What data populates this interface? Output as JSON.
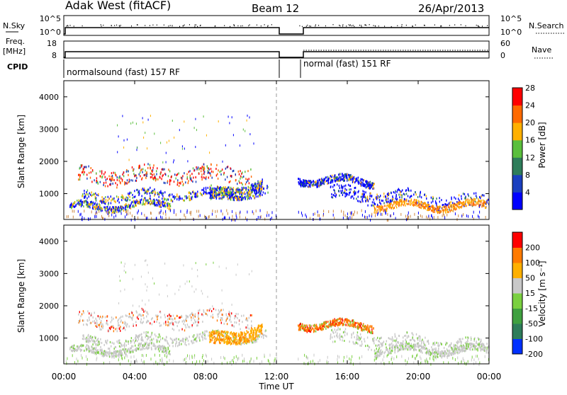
{
  "header": {
    "title": "Adak West (fitACF)",
    "beam": "Beam 12",
    "date": "26/Apr/2013"
  },
  "strips": {
    "nsky_label": "N.Sky",
    "nsky_ticks": [
      "10^5",
      "10^0"
    ],
    "nsearch_label": "N.Search",
    "nsearch_ticks": [
      "10^5",
      "10^0"
    ],
    "freq_label_1": "Freq.",
    "freq_label_2": "[MHz]",
    "freq_ticks": [
      "18",
      "8"
    ],
    "nave_label": "Nave",
    "nave_ticks": [
      "60",
      "0"
    ],
    "cpid_label": "CPID",
    "cpid_segments": [
      {
        "name": "normalsound (fast) 157 RF",
        "start_h": 0.0,
        "end_h": 12.0
      },
      {
        "name": "normal (fast) 151 RF",
        "start_h": 13.2,
        "end_h": 24.0
      }
    ]
  },
  "chart_data": [
    {
      "type": "heatmap",
      "ylabel": "Slant Range [km]",
      "ylim": [
        200,
        4500
      ],
      "yticks": [
        "1000",
        "2000",
        "3000",
        "4000"
      ],
      "xlim": [
        0,
        24
      ],
      "colorbar": {
        "label": "Power [dB]",
        "ticks": [
          "4",
          "8",
          "12",
          "16",
          "20",
          "24",
          "28"
        ],
        "colors": [
          "#0000ff",
          "#1a3fbf",
          "#2e7d5a",
          "#5abf3c",
          "#ffb000",
          "#ff6a00",
          "#ff0000"
        ]
      },
      "data_gap_hours": [
        12.0,
        13.2
      ]
    },
    {
      "type": "heatmap",
      "ylabel": "Slant Range [km]",
      "ylim": [
        200,
        4500
      ],
      "yticks": [
        "1000",
        "2000",
        "3000",
        "4000"
      ],
      "xlim": [
        0,
        24
      ],
      "colorbar": {
        "label": "Velocity [m s⁻¹]",
        "ticks": [
          "200",
          "100",
          "50",
          "15",
          "-15",
          "-50",
          "-100",
          "-200"
        ],
        "colors": [
          "#0030ff",
          "#2e7d5a",
          "#3fa040",
          "#7ad040",
          "#c8c8c8",
          "#ffb000",
          "#ff7a00",
          "#ff0000"
        ]
      },
      "data_gap_hours": [
        12.0,
        13.2
      ]
    }
  ],
  "xaxis": {
    "ticks": [
      "00:00",
      "04:00",
      "08:00",
      "12:00",
      "16:00",
      "20:00",
      "00:00"
    ],
    "label": "Time UT"
  }
}
